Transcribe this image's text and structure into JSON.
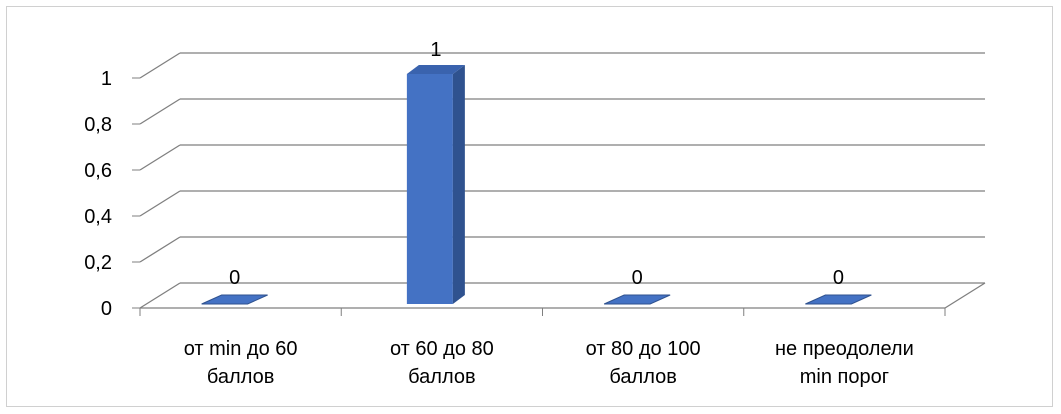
{
  "chart_data": {
    "type": "bar",
    "title": "",
    "xlabel": "",
    "ylabel": "",
    "categories": [
      [
        "от min до 60",
        "баллов"
      ],
      [
        "от 60 до 80",
        "баллов"
      ],
      [
        "от 80 до 100",
        "баллов"
      ],
      [
        "не преодолели",
        "min порог"
      ]
    ],
    "values": [
      0,
      1,
      0,
      0
    ],
    "data_labels": [
      "0",
      "1",
      "0",
      "0"
    ],
    "y_ticks": [
      "0",
      "0,2",
      "0,4",
      "0,6",
      "0,8",
      "1"
    ],
    "ylim": [
      0,
      1
    ],
    "grid": true,
    "legend": "none",
    "three_d": true,
    "colors": {
      "bar_front": "#4472C4",
      "bar_side": "#2F528F",
      "bar_top": "#3A63AE",
      "grid": "#7f7f7f",
      "axis": "#7f7f7f",
      "frame": "#d0d0d0"
    }
  }
}
